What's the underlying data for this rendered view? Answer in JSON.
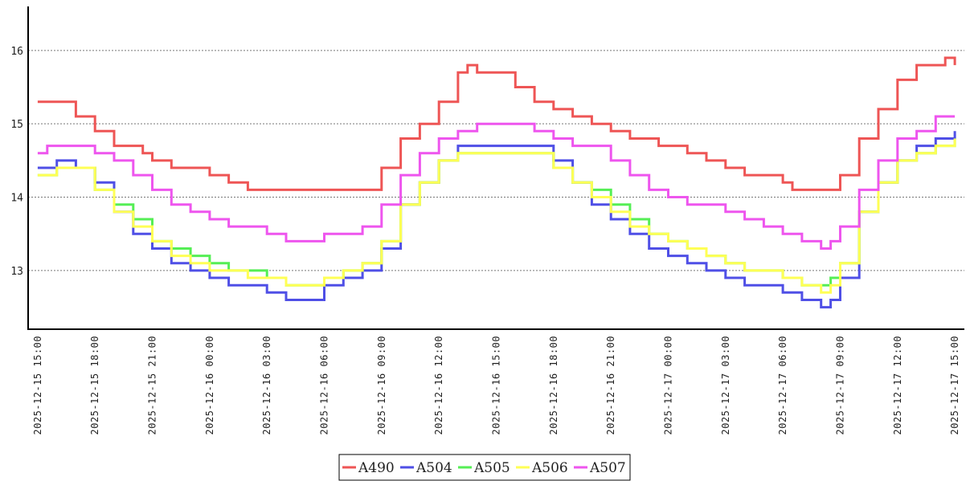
{
  "chart_data": {
    "type": "line",
    "title": "",
    "xlabel": "",
    "ylabel": "",
    "x_range": [
      "2025-12-15 14:30",
      "2025-12-17 15:30"
    ],
    "ylim": [
      12.2,
      16.6
    ],
    "y_ticks": [
      13,
      14,
      15,
      16
    ],
    "grid": "horizontal dashed",
    "legend_position": "bottom-center",
    "x_ticks": [
      "2025-12-15 15:00",
      "2025-12-15 18:00",
      "2025-12-15 21:00",
      "2025-12-16 00:00",
      "2025-12-16 03:00",
      "2025-12-16 06:00",
      "2025-12-16 09:00",
      "2025-12-16 12:00",
      "2025-12-16 15:00",
      "2025-12-16 18:00",
      "2025-12-16 21:00",
      "2025-12-17 00:00",
      "2025-12-17 03:00",
      "2025-12-17 06:00",
      "2025-12-17 09:00",
      "2025-12-17 12:00",
      "2025-12-17 15:00"
    ],
    "series": [
      {
        "name": "A490",
        "color": "#ee5555",
        "points": [
          [
            "2025-12-15 15:00",
            15.3
          ],
          [
            "2025-12-15 16:00",
            15.3
          ],
          [
            "2025-12-15 17:00",
            15.1
          ],
          [
            "2025-12-15 18:00",
            14.9
          ],
          [
            "2025-12-15 19:00",
            14.7
          ],
          [
            "2025-12-15 20:30",
            14.6
          ],
          [
            "2025-12-15 21:00",
            14.5
          ],
          [
            "2025-12-15 22:00",
            14.4
          ],
          [
            "2025-12-16 00:00",
            14.3
          ],
          [
            "2025-12-16 01:00",
            14.2
          ],
          [
            "2025-12-16 02:00",
            14.1
          ],
          [
            "2025-12-16 05:00",
            14.1
          ],
          [
            "2025-12-16 08:00",
            14.1
          ],
          [
            "2025-12-16 09:00",
            14.4
          ],
          [
            "2025-12-16 10:00",
            14.8
          ],
          [
            "2025-12-16 11:00",
            15.0
          ],
          [
            "2025-12-16 12:00",
            15.3
          ],
          [
            "2025-12-16 13:00",
            15.7
          ],
          [
            "2025-12-16 13:30",
            15.8
          ],
          [
            "2025-12-16 14:00",
            15.7
          ],
          [
            "2025-12-16 15:00",
            15.7
          ],
          [
            "2025-12-16 16:00",
            15.5
          ],
          [
            "2025-12-16 17:00",
            15.3
          ],
          [
            "2025-12-16 18:00",
            15.2
          ],
          [
            "2025-12-16 19:00",
            15.1
          ],
          [
            "2025-12-16 20:00",
            15.0
          ],
          [
            "2025-12-16 21:00",
            14.9
          ],
          [
            "2025-12-16 22:00",
            14.8
          ],
          [
            "2025-12-16 23:30",
            14.7
          ],
          [
            "2025-12-17 00:00",
            14.7
          ],
          [
            "2025-12-17 01:00",
            14.6
          ],
          [
            "2025-12-17 02:00",
            14.5
          ],
          [
            "2025-12-17 03:00",
            14.4
          ],
          [
            "2025-12-17 04:00",
            14.3
          ],
          [
            "2025-12-17 06:00",
            14.2
          ],
          [
            "2025-12-17 06:30",
            14.1
          ],
          [
            "2025-12-17 08:30",
            14.1
          ],
          [
            "2025-12-17 09:00",
            14.3
          ],
          [
            "2025-12-17 10:00",
            14.8
          ],
          [
            "2025-12-17 11:00",
            15.2
          ],
          [
            "2025-12-17 12:00",
            15.6
          ],
          [
            "2025-12-17 13:00",
            15.8
          ],
          [
            "2025-12-17 14:00",
            15.8
          ],
          [
            "2025-12-17 14:30",
            15.9
          ],
          [
            "2025-12-17 15:00",
            15.8
          ]
        ]
      },
      {
        "name": "A504",
        "color": "#4f4fe6",
        "points": [
          [
            "2025-12-15 15:00",
            14.4
          ],
          [
            "2025-12-15 16:00",
            14.5
          ],
          [
            "2025-12-15 17:00",
            14.4
          ],
          [
            "2025-12-15 18:00",
            14.2
          ],
          [
            "2025-12-15 19:00",
            13.8
          ],
          [
            "2025-12-15 20:00",
            13.5
          ],
          [
            "2025-12-15 21:00",
            13.3
          ],
          [
            "2025-12-15 22:00",
            13.1
          ],
          [
            "2025-12-15 23:00",
            13.0
          ],
          [
            "2025-12-16 00:00",
            12.9
          ],
          [
            "2025-12-16 01:00",
            12.8
          ],
          [
            "2025-12-16 02:00",
            12.8
          ],
          [
            "2025-12-16 03:00",
            12.7
          ],
          [
            "2025-12-16 04:00",
            12.6
          ],
          [
            "2025-12-16 05:00",
            12.6
          ],
          [
            "2025-12-16 06:00",
            12.8
          ],
          [
            "2025-12-16 07:00",
            12.9
          ],
          [
            "2025-12-16 08:00",
            13.0
          ],
          [
            "2025-12-16 09:00",
            13.3
          ],
          [
            "2025-12-16 10:00",
            13.9
          ],
          [
            "2025-12-16 11:00",
            14.2
          ],
          [
            "2025-12-16 12:00",
            14.5
          ],
          [
            "2025-12-16 13:00",
            14.7
          ],
          [
            "2025-12-16 15:00",
            14.7
          ],
          [
            "2025-12-16 17:00",
            14.7
          ],
          [
            "2025-12-16 18:00",
            14.5
          ],
          [
            "2025-12-16 19:00",
            14.2
          ],
          [
            "2025-12-16 20:00",
            13.9
          ],
          [
            "2025-12-16 21:00",
            13.7
          ],
          [
            "2025-12-16 22:00",
            13.5
          ],
          [
            "2025-12-16 23:00",
            13.3
          ],
          [
            "2025-12-17 00:00",
            13.2
          ],
          [
            "2025-12-17 01:00",
            13.1
          ],
          [
            "2025-12-17 02:00",
            13.0
          ],
          [
            "2025-12-17 03:00",
            12.9
          ],
          [
            "2025-12-17 04:00",
            12.8
          ],
          [
            "2025-12-17 05:00",
            12.8
          ],
          [
            "2025-12-17 06:00",
            12.7
          ],
          [
            "2025-12-17 07:00",
            12.6
          ],
          [
            "2025-12-17 08:00",
            12.5
          ],
          [
            "2025-12-17 08:30",
            12.6
          ],
          [
            "2025-12-17 09:00",
            12.9
          ],
          [
            "2025-12-17 10:00",
            13.8
          ],
          [
            "2025-12-17 11:00",
            14.2
          ],
          [
            "2025-12-17 12:00",
            14.5
          ],
          [
            "2025-12-17 13:00",
            14.7
          ],
          [
            "2025-12-17 14:00",
            14.8
          ],
          [
            "2025-12-17 15:00",
            14.9
          ]
        ]
      },
      {
        "name": "A505",
        "color": "#55ee55",
        "points": [
          [
            "2025-12-15 15:00",
            14.3
          ],
          [
            "2025-12-15 16:00",
            14.4
          ],
          [
            "2025-12-15 17:00",
            14.4
          ],
          [
            "2025-12-15 18:00",
            14.1
          ],
          [
            "2025-12-15 19:00",
            13.9
          ],
          [
            "2025-12-15 20:00",
            13.7
          ],
          [
            "2025-12-15 21:00",
            13.4
          ],
          [
            "2025-12-15 22:00",
            13.3
          ],
          [
            "2025-12-15 23:00",
            13.2
          ],
          [
            "2025-12-16 00:00",
            13.1
          ],
          [
            "2025-12-16 01:00",
            13.0
          ],
          [
            "2025-12-16 02:00",
            13.0
          ],
          [
            "2025-12-16 03:00",
            12.9
          ],
          [
            "2025-12-16 04:00",
            12.8
          ],
          [
            "2025-12-16 05:00",
            12.8
          ],
          [
            "2025-12-16 06:00",
            12.9
          ],
          [
            "2025-12-16 07:00",
            13.0
          ],
          [
            "2025-12-16 08:00",
            13.1
          ],
          [
            "2025-12-16 09:00",
            13.4
          ],
          [
            "2025-12-16 10:00",
            13.9
          ],
          [
            "2025-12-16 11:00",
            14.2
          ],
          [
            "2025-12-16 12:00",
            14.5
          ],
          [
            "2025-12-16 13:00",
            14.6
          ],
          [
            "2025-12-16 15:00",
            14.6
          ],
          [
            "2025-12-16 17:00",
            14.6
          ],
          [
            "2025-12-16 18:00",
            14.4
          ],
          [
            "2025-12-16 19:00",
            14.2
          ],
          [
            "2025-12-16 20:00",
            14.1
          ],
          [
            "2025-12-16 21:00",
            13.9
          ],
          [
            "2025-12-16 22:00",
            13.7
          ],
          [
            "2025-12-16 23:00",
            13.5
          ],
          [
            "2025-12-17 00:00",
            13.4
          ],
          [
            "2025-12-17 01:00",
            13.3
          ],
          [
            "2025-12-17 02:00",
            13.2
          ],
          [
            "2025-12-17 03:00",
            13.1
          ],
          [
            "2025-12-17 04:00",
            13.0
          ],
          [
            "2025-12-17 05:00",
            13.0
          ],
          [
            "2025-12-17 06:00",
            12.9
          ],
          [
            "2025-12-17 07:00",
            12.8
          ],
          [
            "2025-12-17 08:00",
            12.8
          ],
          [
            "2025-12-17 08:30",
            12.9
          ],
          [
            "2025-12-17 09:00",
            13.1
          ],
          [
            "2025-12-17 10:00",
            13.8
          ],
          [
            "2025-12-17 11:00",
            14.2
          ],
          [
            "2025-12-17 12:00",
            14.5
          ],
          [
            "2025-12-17 13:00",
            14.6
          ],
          [
            "2025-12-17 14:00",
            14.7
          ],
          [
            "2025-12-17 15:00",
            14.8
          ]
        ]
      },
      {
        "name": "A506",
        "color": "#ffff55",
        "points": [
          [
            "2025-12-15 15:00",
            14.3
          ],
          [
            "2025-12-15 16:00",
            14.4
          ],
          [
            "2025-12-15 17:00",
            14.4
          ],
          [
            "2025-12-15 18:00",
            14.1
          ],
          [
            "2025-12-15 19:00",
            13.8
          ],
          [
            "2025-12-15 20:00",
            13.6
          ],
          [
            "2025-12-15 21:00",
            13.4
          ],
          [
            "2025-12-15 22:00",
            13.2
          ],
          [
            "2025-12-15 23:00",
            13.1
          ],
          [
            "2025-12-16 00:00",
            13.0
          ],
          [
            "2025-12-16 01:00",
            13.0
          ],
          [
            "2025-12-16 02:00",
            12.9
          ],
          [
            "2025-12-16 03:00",
            12.9
          ],
          [
            "2025-12-16 04:00",
            12.8
          ],
          [
            "2025-12-16 05:00",
            12.8
          ],
          [
            "2025-12-16 06:00",
            12.9
          ],
          [
            "2025-12-16 07:00",
            13.0
          ],
          [
            "2025-12-16 08:00",
            13.1
          ],
          [
            "2025-12-16 09:00",
            13.4
          ],
          [
            "2025-12-16 10:00",
            13.9
          ],
          [
            "2025-12-16 11:00",
            14.2
          ],
          [
            "2025-12-16 12:00",
            14.5
          ],
          [
            "2025-12-16 13:00",
            14.6
          ],
          [
            "2025-12-16 15:00",
            14.6
          ],
          [
            "2025-12-16 17:00",
            14.6
          ],
          [
            "2025-12-16 18:00",
            14.4
          ],
          [
            "2025-12-16 19:00",
            14.2
          ],
          [
            "2025-12-16 20:00",
            14.0
          ],
          [
            "2025-12-16 21:00",
            13.8
          ],
          [
            "2025-12-16 22:00",
            13.6
          ],
          [
            "2025-12-16 23:00",
            13.5
          ],
          [
            "2025-12-17 00:00",
            13.4
          ],
          [
            "2025-12-17 01:00",
            13.3
          ],
          [
            "2025-12-17 02:00",
            13.2
          ],
          [
            "2025-12-17 03:00",
            13.1
          ],
          [
            "2025-12-17 04:00",
            13.0
          ],
          [
            "2025-12-17 05:00",
            13.0
          ],
          [
            "2025-12-17 06:00",
            12.9
          ],
          [
            "2025-12-17 07:00",
            12.8
          ],
          [
            "2025-12-17 08:00",
            12.7
          ],
          [
            "2025-12-17 08:30",
            12.8
          ],
          [
            "2025-12-17 09:00",
            13.1
          ],
          [
            "2025-12-17 10:00",
            13.8
          ],
          [
            "2025-12-17 11:00",
            14.2
          ],
          [
            "2025-12-17 12:00",
            14.5
          ],
          [
            "2025-12-17 13:00",
            14.6
          ],
          [
            "2025-12-17 14:00",
            14.7
          ],
          [
            "2025-12-17 15:00",
            14.8
          ]
        ]
      },
      {
        "name": "A507",
        "color": "#ee55ee",
        "points": [
          [
            "2025-12-15 15:00",
            14.6
          ],
          [
            "2025-12-15 15:30",
            14.7
          ],
          [
            "2025-12-15 17:00",
            14.7
          ],
          [
            "2025-12-15 18:00",
            14.6
          ],
          [
            "2025-12-15 19:00",
            14.5
          ],
          [
            "2025-12-15 20:00",
            14.3
          ],
          [
            "2025-12-15 21:00",
            14.1
          ],
          [
            "2025-12-15 22:00",
            13.9
          ],
          [
            "2025-12-15 23:00",
            13.8
          ],
          [
            "2025-12-16 00:00",
            13.7
          ],
          [
            "2025-12-16 01:00",
            13.6
          ],
          [
            "2025-12-16 02:00",
            13.6
          ],
          [
            "2025-12-16 03:00",
            13.5
          ],
          [
            "2025-12-16 04:00",
            13.4
          ],
          [
            "2025-12-16 05:00",
            13.4
          ],
          [
            "2025-12-16 06:00",
            13.5
          ],
          [
            "2025-12-16 07:00",
            13.5
          ],
          [
            "2025-12-16 08:00",
            13.6
          ],
          [
            "2025-12-16 09:00",
            13.9
          ],
          [
            "2025-12-16 10:00",
            14.3
          ],
          [
            "2025-12-16 11:00",
            14.6
          ],
          [
            "2025-12-16 12:00",
            14.8
          ],
          [
            "2025-12-16 13:00",
            14.9
          ],
          [
            "2025-12-16 14:00",
            15.0
          ],
          [
            "2025-12-16 16:00",
            15.0
          ],
          [
            "2025-12-16 17:00",
            14.9
          ],
          [
            "2025-12-16 18:00",
            14.8
          ],
          [
            "2025-12-16 19:00",
            14.7
          ],
          [
            "2025-12-16 20:00",
            14.7
          ],
          [
            "2025-12-16 21:00",
            14.5
          ],
          [
            "2025-12-16 22:00",
            14.3
          ],
          [
            "2025-12-16 23:00",
            14.1
          ],
          [
            "2025-12-17 00:00",
            14.0
          ],
          [
            "2025-12-17 01:00",
            13.9
          ],
          [
            "2025-12-17 02:00",
            13.9
          ],
          [
            "2025-12-17 03:00",
            13.8
          ],
          [
            "2025-12-17 04:00",
            13.7
          ],
          [
            "2025-12-17 05:00",
            13.6
          ],
          [
            "2025-12-17 06:00",
            13.5
          ],
          [
            "2025-12-17 07:00",
            13.4
          ],
          [
            "2025-12-17 08:00",
            13.3
          ],
          [
            "2025-12-17 08:30",
            13.4
          ],
          [
            "2025-12-17 09:00",
            13.6
          ],
          [
            "2025-12-17 10:00",
            14.1
          ],
          [
            "2025-12-17 11:00",
            14.5
          ],
          [
            "2025-12-17 12:00",
            14.8
          ],
          [
            "2025-12-17 13:00",
            14.9
          ],
          [
            "2025-12-17 14:00",
            15.1
          ],
          [
            "2025-12-17 15:00",
            15.1
          ]
        ]
      }
    ]
  }
}
